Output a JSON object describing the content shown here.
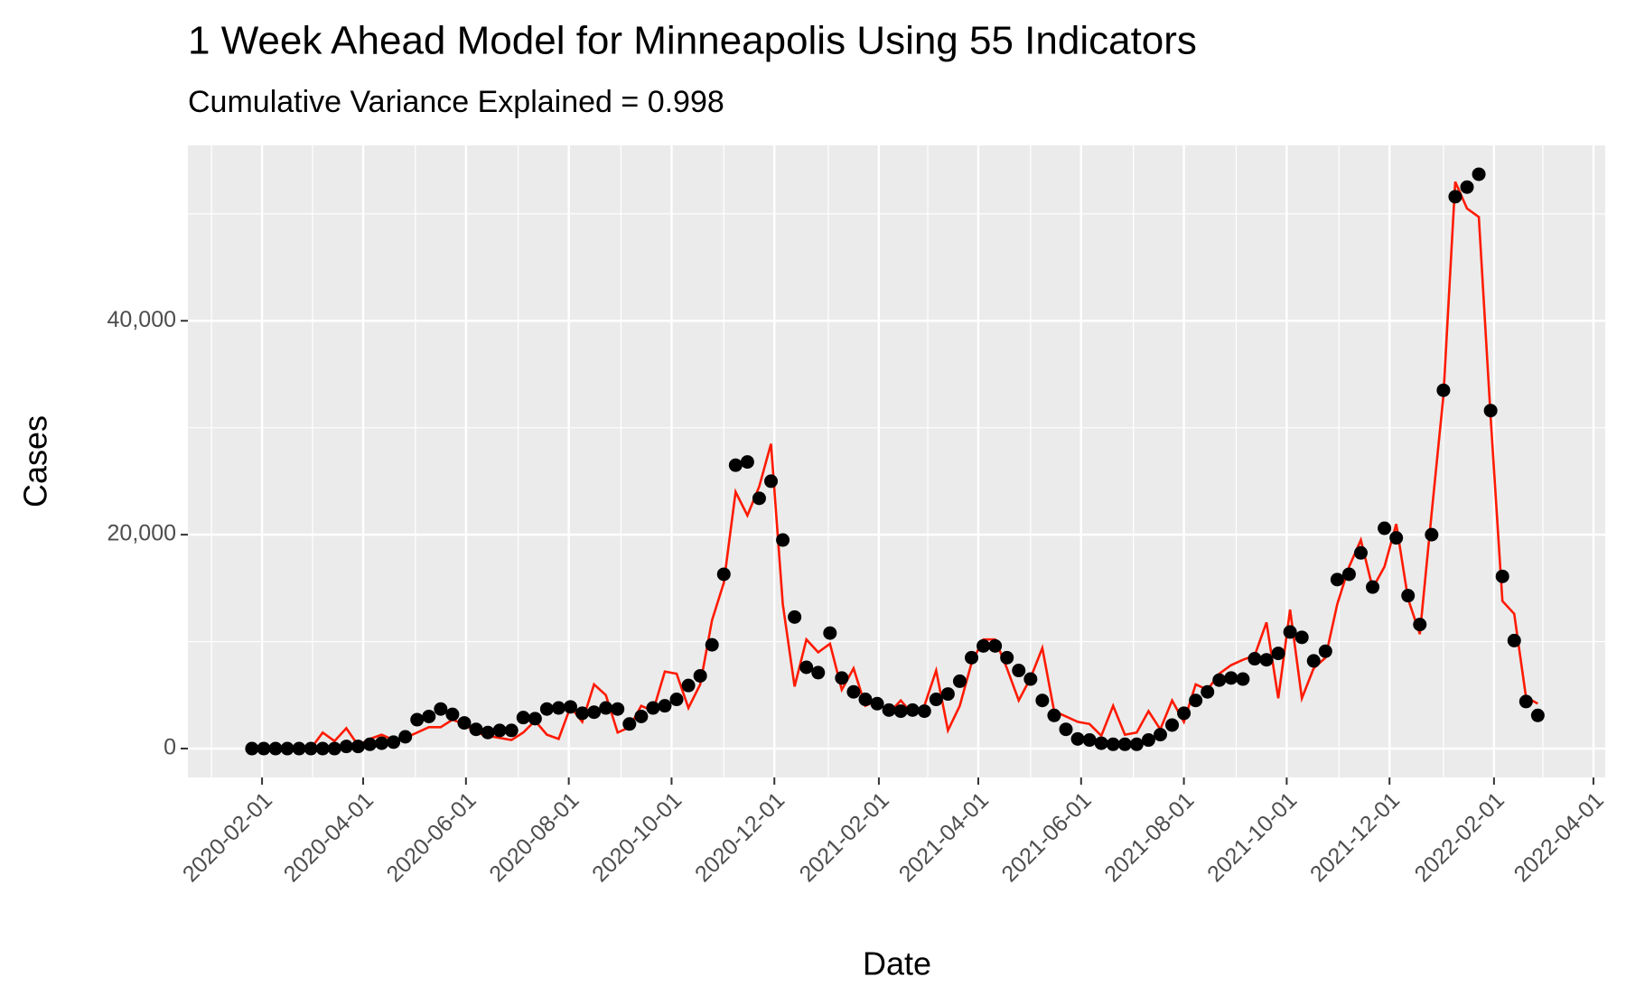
{
  "chart_data": {
    "type": "line",
    "title": "1 Week Ahead Model for Minneapolis Using 55 Indicators",
    "subtitle": "Cumulative Variance Explained = 0.998",
    "x_label": "Date",
    "y_label": "Cases",
    "x": [
      "2020-01-26",
      "2020-02-02",
      "2020-02-09",
      "2020-02-16",
      "2020-02-23",
      "2020-03-01",
      "2020-03-08",
      "2020-03-15",
      "2020-03-22",
      "2020-03-29",
      "2020-04-05",
      "2020-04-12",
      "2020-04-19",
      "2020-04-26",
      "2020-05-03",
      "2020-05-10",
      "2020-05-17",
      "2020-05-24",
      "2020-05-31",
      "2020-06-07",
      "2020-06-14",
      "2020-06-21",
      "2020-06-28",
      "2020-07-05",
      "2020-07-12",
      "2020-07-19",
      "2020-07-26",
      "2020-08-02",
      "2020-08-09",
      "2020-08-16",
      "2020-08-23",
      "2020-08-30",
      "2020-09-06",
      "2020-09-13",
      "2020-09-20",
      "2020-09-27",
      "2020-10-04",
      "2020-10-11",
      "2020-10-18",
      "2020-10-25",
      "2020-11-01",
      "2020-11-08",
      "2020-11-15",
      "2020-11-22",
      "2020-11-29",
      "2020-12-06",
      "2020-12-13",
      "2020-12-20",
      "2020-12-27",
      "2021-01-03",
      "2021-01-10",
      "2021-01-17",
      "2021-01-24",
      "2021-01-31",
      "2021-02-07",
      "2021-02-14",
      "2021-02-21",
      "2021-02-28",
      "2021-03-07",
      "2021-03-14",
      "2021-03-21",
      "2021-03-28",
      "2021-04-04",
      "2021-04-11",
      "2021-04-18",
      "2021-04-25",
      "2021-05-02",
      "2021-05-09",
      "2021-05-16",
      "2021-05-23",
      "2021-05-30",
      "2021-06-06",
      "2021-06-13",
      "2021-06-20",
      "2021-06-27",
      "2021-07-04",
      "2021-07-11",
      "2021-07-18",
      "2021-07-25",
      "2021-08-01",
      "2021-08-08",
      "2021-08-15",
      "2021-08-22",
      "2021-08-29",
      "2021-09-05",
      "2021-09-12",
      "2021-09-19",
      "2021-09-26",
      "2021-10-03",
      "2021-10-10",
      "2021-10-17",
      "2021-10-24",
      "2021-10-31",
      "2021-11-07",
      "2021-11-14",
      "2021-11-21",
      "2021-11-28",
      "2021-12-05",
      "2021-12-12",
      "2021-12-19",
      "2021-12-26",
      "2022-01-02",
      "2022-01-09",
      "2022-01-16",
      "2022-01-23",
      "2022-01-30",
      "2022-02-06",
      "2022-02-13",
      "2022-02-20",
      "2022-02-27"
    ],
    "series": [
      {
        "color": "#ff1a00",
        "mark": "line",
        "values": [
          0,
          100,
          0,
          0,
          0,
          0,
          1500,
          700,
          1900,
          300,
          900,
          1300,
          800,
          1000,
          1500,
          2000,
          2000,
          2700,
          2300,
          1500,
          1200,
          1000,
          800,
          1500,
          2600,
          1300,
          900,
          3900,
          2500,
          6000,
          5000,
          1500,
          2000,
          4000,
          3500,
          7200,
          7000,
          3800,
          6000,
          12000,
          15500,
          24000,
          21800,
          24500,
          28500,
          13500,
          5800,
          10200,
          9000,
          9800,
          5500,
          7500,
          4000,
          4500,
          3300,
          4500,
          3200,
          4000,
          7300,
          1700,
          4000,
          8000,
          10200,
          10200,
          7500,
          4500,
          6600,
          9400,
          3500,
          3000,
          2500,
          2300,
          1200,
          4000,
          1300,
          1500,
          3500,
          1800,
          4500,
          2500,
          6000,
          5500,
          7000,
          7800,
          8300,
          8700,
          11800,
          4700,
          13000,
          4700,
          7500,
          8500,
          13500,
          17000,
          19500,
          15000,
          17000,
          21000,
          14000,
          10700,
          22000,
          33000,
          53000,
          50500,
          49700,
          31000,
          13800,
          12600,
          4800,
          4200
        ]
      },
      {
        "color": "#000000",
        "mark": "point",
        "values": [
          0,
          0,
          0,
          0,
          0,
          0,
          0,
          0,
          200,
          200,
          400,
          500,
          600,
          1100,
          2700,
          3000,
          3700,
          3200,
          2400,
          1800,
          1500,
          1700,
          1700,
          2900,
          2800,
          3700,
          3800,
          3900,
          3300,
          3400,
          3800,
          3700,
          2300,
          3000,
          3800,
          4000,
          4600,
          5900,
          6800,
          9700,
          16300,
          26500,
          26800,
          23400,
          25000,
          19500,
          12300,
          7600,
          7100,
          10800,
          6600,
          5300,
          4600,
          4200,
          3600,
          3500,
          3600,
          3500,
          4600,
          5100,
          6300,
          8500,
          9600,
          9600,
          8500,
          7300,
          6500,
          4500,
          3100,
          1800,
          900,
          800,
          500,
          400,
          400,
          400,
          800,
          1300,
          2200,
          3300,
          4500,
          5300,
          6400,
          6600,
          6500,
          8400,
          8300,
          8900,
          10900,
          10400,
          8200,
          9100,
          15800,
          16300,
          18300,
          15100,
          20600,
          19700,
          14300,
          11600,
          20000,
          33500,
          51600,
          52500,
          53700,
          31600,
          16100,
          10100,
          4400,
          3100
        ]
      }
    ],
    "xlim": [
      "2019-12-19",
      "2022-04-08"
    ],
    "xticks": [
      "2020-02-01",
      "2020-04-01",
      "2020-06-01",
      "2020-08-01",
      "2020-10-01",
      "2020-12-01",
      "2021-02-01",
      "2021-04-01",
      "2021-06-01",
      "2021-08-01",
      "2021-10-01",
      "2021-12-01",
      "2022-02-01",
      "2022-04-01"
    ],
    "ylim": [
      -2700,
      56400
    ],
    "yticks": [
      0,
      {
        "value": 20000,
        "label": "20,000"
      },
      {
        "value": 40000,
        "label": "40,000"
      }
    ],
    "grid": true
  }
}
